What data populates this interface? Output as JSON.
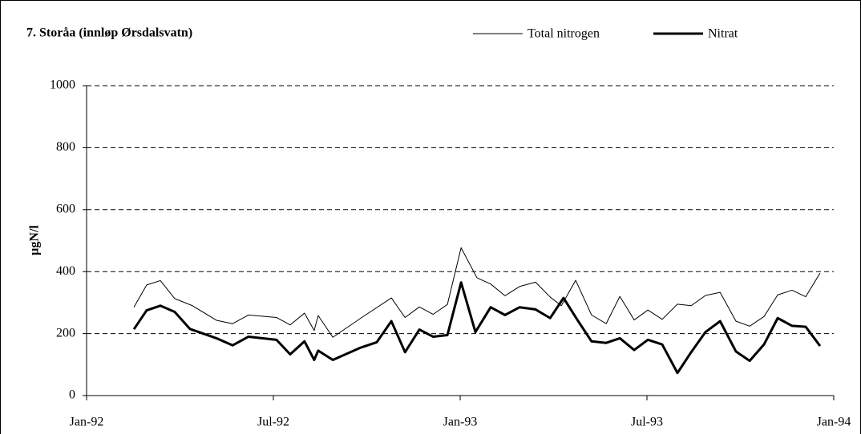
{
  "chart_data": {
    "type": "line",
    "title": "7. Storåa (innløp Ørsdalsvatn)",
    "y_label": "µgN/l",
    "xlim": [
      0,
      24
    ],
    "xticks": [
      {
        "value": 0,
        "label": "Jan-92"
      },
      {
        "value": 6,
        "label": "Jul-92"
      },
      {
        "value": 12,
        "label": "Jan-93"
      },
      {
        "value": 18,
        "label": "Jul-93"
      },
      {
        "value": 24,
        "label": "Jan-94"
      }
    ],
    "ylim": [
      0,
      1000
    ],
    "yticks": [
      0,
      200,
      400,
      600,
      800,
      1000
    ],
    "grid": true,
    "series": [
      {
        "name": "Total nitrogen",
        "color": "#000000",
        "width": 1,
        "x": [
          1.52,
          1.93,
          2.37,
          2.83,
          3.4,
          4.17,
          4.69,
          5.2,
          6.1,
          6.54,
          7.0,
          7.31,
          7.44,
          7.91,
          8.81,
          9.79,
          10.23,
          10.69,
          11.13,
          11.59,
          12.03,
          12.54,
          12.98,
          13.44,
          13.91,
          14.42,
          14.89,
          15.25,
          15.71,
          16.22,
          16.69,
          17.13,
          17.59,
          18.03,
          18.49,
          18.98,
          19.42,
          19.88,
          20.35,
          20.86,
          21.3,
          21.76,
          22.2,
          22.66,
          23.1,
          23.56
        ],
        "values": [
          285,
          357,
          371,
          313,
          290,
          243,
          232,
          260,
          252,
          228,
          266,
          210,
          258,
          188,
          250,
          315,
          252,
          286,
          262,
          294,
          477,
          380,
          360,
          322,
          352,
          366,
          318,
          290,
          372,
          260,
          232,
          320,
          244,
          276,
          246,
          295,
          290,
          323,
          333,
          240,
          224,
          255,
          325,
          340,
          319,
          395
        ]
      },
      {
        "name": "Nitrat",
        "color": "#000000",
        "width": 3,
        "x": [
          1.52,
          1.93,
          2.37,
          2.83,
          3.32,
          4.17,
          4.69,
          5.2,
          6.1,
          6.54,
          7.0,
          7.31,
          7.44,
          7.91,
          8.81,
          9.32,
          9.79,
          10.23,
          10.69,
          11.13,
          11.59,
          12.03,
          12.49,
          12.98,
          13.44,
          13.91,
          14.42,
          14.89,
          15.32,
          15.76,
          16.22,
          16.69,
          17.13,
          17.59,
          18.03,
          18.49,
          18.98,
          19.42,
          19.88,
          20.35,
          20.86,
          21.3,
          21.76,
          22.2,
          22.66,
          23.1,
          23.56
        ],
        "values": [
          214,
          275,
          290,
          270,
          215,
          185,
          162,
          190,
          180,
          133,
          175,
          115,
          145,
          115,
          155,
          172,
          240,
          140,
          213,
          190,
          195,
          365,
          205,
          285,
          260,
          285,
          278,
          250,
          315,
          245,
          175,
          170,
          185,
          147,
          180,
          165,
          73,
          140,
          205,
          240,
          142,
          112,
          165,
          250,
          225,
          222,
          160
        ]
      }
    ]
  }
}
